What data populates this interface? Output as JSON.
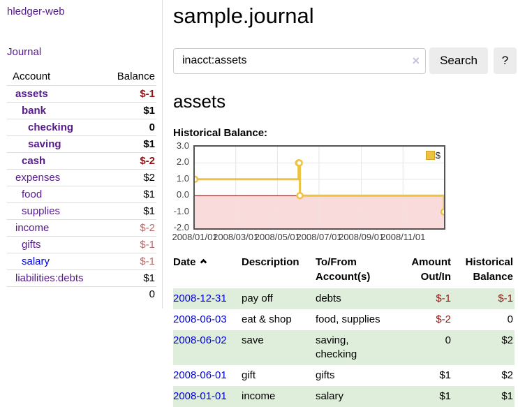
{
  "app": {
    "title": "hledger-web",
    "nav_journal": "Journal"
  },
  "sidebar": {
    "columns": {
      "account": "Account",
      "balance": "Balance"
    },
    "accounts": [
      {
        "name": "assets",
        "balance": "$-1",
        "indent": 0,
        "bold": true,
        "negative": "strong"
      },
      {
        "name": "bank",
        "balance": "$1",
        "indent": 1,
        "bold": true,
        "negative": "none"
      },
      {
        "name": "checking",
        "balance": "0",
        "indent": 2,
        "bold": true,
        "negative": "none"
      },
      {
        "name": "saving",
        "balance": "$1",
        "indent": 2,
        "bold": true,
        "negative": "none"
      },
      {
        "name": "cash",
        "balance": "$-2",
        "indent": 1,
        "bold": true,
        "negative": "strong"
      },
      {
        "name": "expenses",
        "balance": "$2",
        "indent": 0,
        "bold": false,
        "negative": "none"
      },
      {
        "name": "food",
        "balance": "$1",
        "indent": 1,
        "bold": false,
        "negative": "none"
      },
      {
        "name": "supplies",
        "balance": "$1",
        "indent": 1,
        "bold": false,
        "negative": "none"
      },
      {
        "name": "income",
        "balance": "$-2",
        "indent": 0,
        "bold": false,
        "negative": "soft"
      },
      {
        "name": "gifts",
        "balance": "$-1",
        "indent": 1,
        "bold": false,
        "negative": "soft"
      },
      {
        "name": "salary",
        "balance": "$-1",
        "indent": 1,
        "bold": false,
        "negative": "soft",
        "link_color": "blue"
      },
      {
        "name": "liabilities:debts",
        "balance": "$1",
        "indent": 0,
        "bold": false,
        "negative": "none"
      }
    ],
    "total": "0"
  },
  "header": {
    "title": "sample.journal"
  },
  "search": {
    "value": "inacct:assets",
    "clear_icon": "×",
    "button": "Search",
    "help_button": "?"
  },
  "account_page": {
    "heading": "assets",
    "chart_label": "Historical Balance:"
  },
  "chart_data": {
    "type": "line",
    "style": "step",
    "title": "Historical Balance",
    "series": [
      {
        "name": "$",
        "color": "#edc240",
        "points": [
          {
            "x": "2008/01/01",
            "y": 1
          },
          {
            "x": "2008/06/01",
            "y": 2
          },
          {
            "x": "2008/06/02",
            "y": 2
          },
          {
            "x": "2008/06/03",
            "y": 0
          },
          {
            "x": "2008/12/31",
            "y": -1
          }
        ]
      }
    ],
    "xticks": [
      "2008/01/01",
      "2008/03/01",
      "2008/05/01",
      "2008/07/01",
      "2008/09/01",
      "2008/11/01"
    ],
    "yticks": [
      3.0,
      2.0,
      1.0,
      0.0,
      -1.0,
      -2.0
    ],
    "ylim": [
      -2,
      3
    ],
    "xlim": [
      "2008/01/01",
      "2008/12/31"
    ],
    "grid": true,
    "legend_position": "top-right",
    "negative_region_color": "#f9dbdb",
    "zero_line_color": "#8b0000",
    "grid_color": "#e6e6e6",
    "border_color": "#545454"
  },
  "register": {
    "columns": [
      "Date",
      "Description",
      "To/From Account(s)",
      "Amount Out/In",
      "Historical Balance"
    ],
    "sort_icon": "chevron-up",
    "rows": [
      {
        "date": "2008-12-31",
        "description": "pay off",
        "accounts": "debts",
        "amount": "$-1",
        "amount_negative": true,
        "balance": "$-1",
        "balance_negative": true
      },
      {
        "date": "2008-06-03",
        "description": "eat & shop",
        "accounts": "food, supplies",
        "amount": "$-2",
        "amount_negative": true,
        "balance": "0",
        "balance_negative": false
      },
      {
        "date": "2008-06-02",
        "description": "save",
        "accounts": "saving,\nchecking",
        "amount": "0",
        "amount_negative": false,
        "balance": "$2",
        "balance_negative": false
      },
      {
        "date": "2008-06-01",
        "description": "gift",
        "accounts": "gifts",
        "amount": "$1",
        "amount_negative": false,
        "balance": "$2",
        "balance_negative": false
      },
      {
        "date": "2008-01-01",
        "description": "income",
        "accounts": "salary",
        "amount": "$1",
        "amount_negative": false,
        "balance": "$1",
        "balance_negative": false
      }
    ]
  },
  "colors": {
    "link_purple": "#551a8b",
    "link_blue": "#0000e0",
    "negative_strong": "#8f1414",
    "negative_soft": "#b56a6a",
    "row_green": "#dfeeda",
    "chart_gold": "#edc240"
  }
}
